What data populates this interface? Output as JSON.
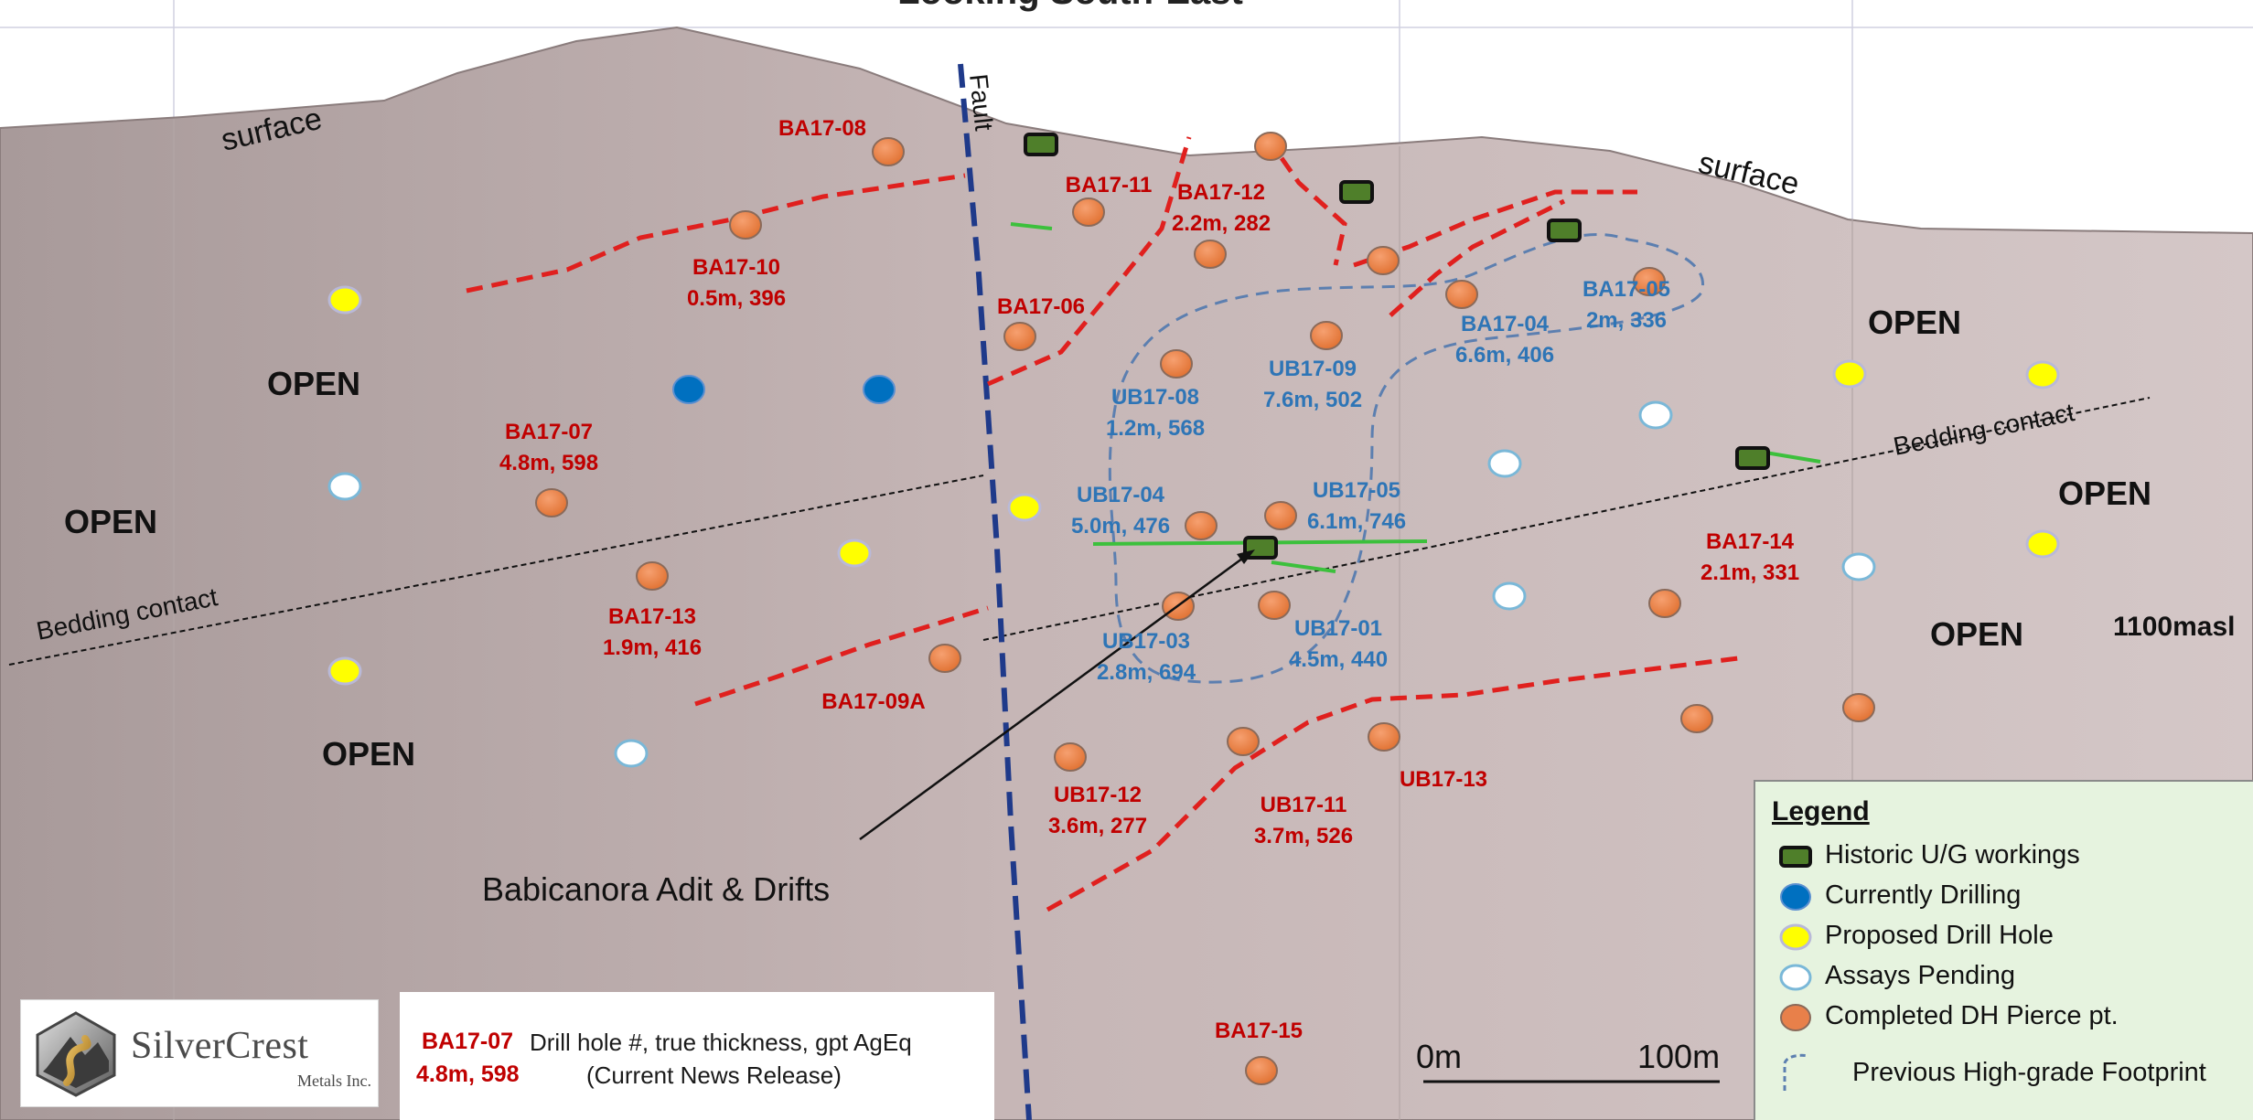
{
  "title_fragment": "Looking South-East",
  "labels": {
    "surface_left": "surface",
    "surface_right": "surface",
    "fault": "Fault",
    "bedding_contact_left": "Bedding contact",
    "bedding_contact_right": "Bedding contact",
    "elevation": "1100masl",
    "adit": "Babicanora Adit & Drifts",
    "scale_start": "0m",
    "scale_end": "100m"
  },
  "open_labels": [
    "OPEN",
    "OPEN",
    "OPEN",
    "OPEN",
    "OPEN",
    "OPEN"
  ],
  "drill_labels": [
    {
      "id": "BA17-08",
      "values": "",
      "color": "red"
    },
    {
      "id": "BA17-10",
      "values": "0.5m, 396",
      "color": "red"
    },
    {
      "id": "BA17-11",
      "values": "",
      "color": "red"
    },
    {
      "id": "BA17-12",
      "values": "2.2m, 282",
      "color": "red"
    },
    {
      "id": "BA17-06",
      "values": "",
      "color": "red"
    },
    {
      "id": "BA17-04",
      "values": "6.6m, 406",
      "color": "blue"
    },
    {
      "id": "BA17-05",
      "values": "2m, 336",
      "color": "blue"
    },
    {
      "id": "UB17-09",
      "values": "7.6m, 502",
      "color": "blue"
    },
    {
      "id": "UB17-08",
      "values": "1.2m, 568",
      "color": "blue"
    },
    {
      "id": "BA17-07",
      "values": "4.8m, 598",
      "color": "red"
    },
    {
      "id": "UB17-04",
      "values": "5.0m, 476",
      "color": "blue"
    },
    {
      "id": "UB17-05",
      "values": "6.1m, 746",
      "color": "blue"
    },
    {
      "id": "BA17-14",
      "values": "2.1m, 331",
      "color": "red"
    },
    {
      "id": "BA17-13",
      "values": "1.9m, 416",
      "color": "red"
    },
    {
      "id": "UB17-03",
      "values": "2.8m, 694",
      "color": "blue"
    },
    {
      "id": "UB17-01",
      "values": "4.5m, 440",
      "color": "blue"
    },
    {
      "id": "BA17-09A",
      "values": "",
      "color": "red"
    },
    {
      "id": "UB17-13",
      "values": "",
      "color": "red"
    },
    {
      "id": "UB17-12",
      "values": "3.6m, 277",
      "color": "red"
    },
    {
      "id": "UB17-11",
      "values": "3.7m, 526",
      "color": "red"
    },
    {
      "id": "BA17-15",
      "values": "",
      "color": "red"
    }
  ],
  "logo": {
    "name": "SilverCrest",
    "sub": "Metals Inc."
  },
  "key": {
    "id": "BA17-07",
    "values": "4.8m, 598",
    "desc1": "Drill hole #, true thickness, gpt AgEq",
    "desc2": "(Current News Release)"
  },
  "legend": {
    "title": "Legend",
    "items": [
      {
        "label": "Historic U/G workings",
        "symbol": "green-rect"
      },
      {
        "label": "Currently Drilling",
        "symbol": "blue-dot"
      },
      {
        "label": "Proposed Drill Hole",
        "symbol": "yellow-dot"
      },
      {
        "label": "Assays Pending",
        "symbol": "white-dot"
      },
      {
        "label": "Completed DH Pierce pt.",
        "symbol": "orange-dot"
      },
      {
        "label": "Previous High-grade Footprint",
        "symbol": "dashed-outline"
      }
    ]
  },
  "colors": {
    "section_fill": "#bfaeae",
    "red_label": "#c00000",
    "blue_label": "#2e75b6",
    "orange_dot": "#e8804a",
    "yellow_dot": "#ffff00",
    "blue_dot": "#0070c0",
    "green_working": "#4f7f2a",
    "vein_red": "#e0201e",
    "fault_blue": "#1f3a8a",
    "legend_bg": "#e6f3df"
  }
}
